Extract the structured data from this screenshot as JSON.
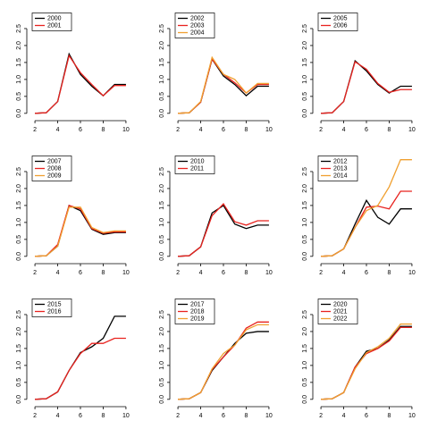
{
  "chart_data": [
    {
      "type": "line",
      "x": [
        2,
        3,
        4,
        5,
        6,
        7,
        8,
        9,
        10
      ],
      "xlim": [
        1.68,
        10.32
      ],
      "ylim": [
        -0.11,
        2.96
      ],
      "xticks": [
        2,
        4,
        6,
        8,
        10
      ],
      "yticks": [
        {
          "value": 0,
          "label": "0.0"
        },
        0.5,
        {
          "value": 1,
          "label": "1.0"
        },
        1.5,
        {
          "value": 2,
          "label": "2.0"
        },
        2.5
      ],
      "series": [
        {
          "name": "2000",
          "color": "#000000",
          "values": [
            0,
            0.02,
            0.35,
            1.75,
            1.15,
            0.8,
            0.52,
            0.85,
            0.85
          ]
        },
        {
          "name": "2001",
          "color": "#e8231f",
          "values": [
            0,
            0.02,
            0.35,
            1.7,
            1.2,
            0.85,
            0.52,
            0.82,
            0.82
          ]
        }
      ]
    },
    {
      "type": "line",
      "x": [
        2,
        3,
        4,
        5,
        6,
        7,
        8,
        9,
        10
      ],
      "xlim": [
        1.68,
        10.32
      ],
      "ylim": [
        -0.11,
        2.96
      ],
      "xticks": [
        2,
        4,
        6,
        8,
        10
      ],
      "yticks": [
        {
          "value": 0,
          "label": "0.0"
        },
        0.5,
        {
          "value": 1,
          "label": "1.0"
        },
        1.5,
        {
          "value": 2,
          "label": "2.0"
        },
        2.5
      ],
      "series": [
        {
          "name": "2002",
          "color": "#000000",
          "values": [
            0,
            0.02,
            0.33,
            1.6,
            1.1,
            0.85,
            0.52,
            0.8,
            0.8
          ]
        },
        {
          "name": "2003",
          "color": "#e8231f",
          "values": [
            0,
            0.02,
            0.33,
            1.6,
            1.15,
            0.9,
            0.6,
            0.85,
            0.85
          ]
        },
        {
          "name": "2004",
          "color": "#f0a030",
          "values": [
            0,
            0.02,
            0.35,
            1.65,
            1.15,
            1.0,
            0.6,
            0.88,
            0.88
          ]
        }
      ]
    },
    {
      "type": "line",
      "x": [
        2,
        3,
        4,
        5,
        6,
        7,
        8,
        9,
        10
      ],
      "xlim": [
        1.68,
        10.32
      ],
      "ylim": [
        -0.11,
        2.96
      ],
      "xticks": [
        2,
        4,
        6,
        8,
        10
      ],
      "yticks": [
        {
          "value": 0,
          "label": "0.0"
        },
        0.5,
        {
          "value": 1,
          "label": "1.0"
        },
        1.5,
        {
          "value": 2,
          "label": "2.0"
        },
        2.5
      ],
      "series": [
        {
          "name": "2005",
          "color": "#000000",
          "values": [
            0,
            0.02,
            0.35,
            1.55,
            1.25,
            0.85,
            0.6,
            0.8,
            0.8
          ]
        },
        {
          "name": "2006",
          "color": "#e8231f",
          "values": [
            0,
            0.02,
            0.35,
            1.52,
            1.3,
            0.88,
            0.62,
            0.7,
            0.7
          ]
        }
      ]
    },
    {
      "type": "line",
      "x": [
        2,
        3,
        4,
        5,
        6,
        7,
        8,
        9,
        10
      ],
      "xlim": [
        1.68,
        10.32
      ],
      "ylim": [
        -0.11,
        2.96
      ],
      "xticks": [
        2,
        4,
        6,
        8,
        10
      ],
      "yticks": [
        {
          "value": 0,
          "label": "0.0"
        },
        0.5,
        {
          "value": 1,
          "label": "1.0"
        },
        1.5,
        {
          "value": 2,
          "label": "2.0"
        },
        2.5
      ],
      "series": [
        {
          "name": "2007",
          "color": "#000000",
          "values": [
            0,
            0.02,
            0.3,
            1.5,
            1.35,
            0.8,
            0.65,
            0.7,
            0.7
          ]
        },
        {
          "name": "2008",
          "color": "#e8231f",
          "values": [
            0,
            0.02,
            0.35,
            1.5,
            1.4,
            0.82,
            0.68,
            0.72,
            0.72
          ]
        },
        {
          "name": "2009",
          "color": "#f0a030",
          "values": [
            0,
            0.02,
            0.3,
            1.45,
            1.45,
            0.85,
            0.7,
            0.75,
            0.75
          ]
        }
      ]
    },
    {
      "type": "line",
      "x": [
        2,
        3,
        4,
        5,
        6,
        7,
        8,
        9,
        10
      ],
      "xlim": [
        1.68,
        10.32
      ],
      "ylim": [
        -0.11,
        2.96
      ],
      "xticks": [
        2,
        4,
        6,
        8,
        10
      ],
      "yticks": [
        {
          "value": 0,
          "label": "0.0"
        },
        0.5,
        {
          "value": 1,
          "label": "1.0"
        },
        1.5,
        {
          "value": 2,
          "label": "2.0"
        },
        2.5
      ],
      "series": [
        {
          "name": "2010",
          "color": "#000000",
          "values": [
            0,
            0.02,
            0.28,
            1.28,
            1.5,
            0.95,
            0.82,
            0.92,
            0.92
          ]
        },
        {
          "name": "2011",
          "color": "#e8231f",
          "values": [
            0,
            0.02,
            0.28,
            1.2,
            1.55,
            1.02,
            0.92,
            1.05,
            1.05
          ]
        }
      ]
    },
    {
      "type": "line",
      "x": [
        2,
        3,
        4,
        5,
        6,
        7,
        8,
        9,
        10
      ],
      "xlim": [
        1.68,
        10.32
      ],
      "ylim": [
        -0.11,
        2.96
      ],
      "xticks": [
        2,
        4,
        6,
        8,
        10
      ],
      "yticks": [
        {
          "value": 0,
          "label": "0.0"
        },
        0.5,
        {
          "value": 1,
          "label": "1.0"
        },
        1.5,
        {
          "value": 2,
          "label": "2.0"
        },
        2.5
      ],
      "series": [
        {
          "name": "2012",
          "color": "#000000",
          "values": [
            0,
            0.02,
            0.22,
            0.95,
            1.65,
            1.15,
            0.95,
            1.4,
            1.4
          ]
        },
        {
          "name": "2013",
          "color": "#e8231f",
          "values": [
            0,
            0.02,
            0.22,
            0.85,
            1.45,
            1.48,
            1.4,
            1.92,
            1.92
          ]
        },
        {
          "name": "2014",
          "color": "#f0a030",
          "values": [
            0,
            0.02,
            0.22,
            0.85,
            1.35,
            1.5,
            2.05,
            2.85,
            2.85
          ]
        }
      ]
    },
    {
      "type": "line",
      "x": [
        2,
        3,
        4,
        5,
        6,
        7,
        8,
        9,
        10
      ],
      "xlim": [
        1.68,
        10.32
      ],
      "ylim": [
        -0.11,
        2.96
      ],
      "xticks": [
        2,
        4,
        6,
        8,
        10
      ],
      "yticks": [
        {
          "value": 0,
          "label": "0.0"
        },
        0.5,
        {
          "value": 1,
          "label": "1.0"
        },
        1.5,
        {
          "value": 2,
          "label": "2.0"
        },
        2.5
      ],
      "series": [
        {
          "name": "2015",
          "color": "#000000",
          "values": [
            0,
            0.02,
            0.22,
            0.85,
            1.38,
            1.55,
            1.8,
            2.45,
            2.45
          ]
        },
        {
          "name": "2016",
          "color": "#e8231f",
          "values": [
            0,
            0.02,
            0.22,
            0.85,
            1.35,
            1.65,
            1.65,
            1.8,
            1.8
          ]
        }
      ]
    },
    {
      "type": "line",
      "x": [
        2,
        3,
        4,
        5,
        6,
        7,
        8,
        9,
        10
      ],
      "xlim": [
        1.68,
        10.32
      ],
      "ylim": [
        -0.11,
        2.96
      ],
      "xticks": [
        2,
        4,
        6,
        8,
        10
      ],
      "yticks": [
        {
          "value": 0,
          "label": "0.0"
        },
        0.5,
        {
          "value": 1,
          "label": "1.0"
        },
        1.5,
        {
          "value": 2,
          "label": "2.0"
        },
        2.5
      ],
      "series": [
        {
          "name": "2017",
          "color": "#000000",
          "values": [
            0,
            0.02,
            0.2,
            0.85,
            1.25,
            1.65,
            1.95,
            2.0,
            2.0
          ]
        },
        {
          "name": "2018",
          "color": "#e8231f",
          "values": [
            0,
            0.02,
            0.2,
            0.88,
            1.25,
            1.6,
            2.1,
            2.28,
            2.28
          ]
        },
        {
          "name": "2019",
          "color": "#f0a030",
          "values": [
            0,
            0.02,
            0.2,
            0.9,
            1.35,
            1.6,
            2.05,
            2.2,
            2.2
          ]
        }
      ]
    },
    {
      "type": "line",
      "x": [
        2,
        3,
        4,
        5,
        6,
        7,
        8,
        9,
        10
      ],
      "xlim": [
        1.68,
        10.32
      ],
      "ylim": [
        -0.11,
        2.96
      ],
      "xticks": [
        2,
        4,
        6,
        8,
        10
      ],
      "yticks": [
        {
          "value": 0,
          "label": "0.0"
        },
        0.5,
        {
          "value": 1,
          "label": "1.0"
        },
        1.5,
        {
          "value": 2,
          "label": "2.0"
        },
        2.5
      ],
      "series": [
        {
          "name": "2020",
          "color": "#000000",
          "values": [
            0,
            0.02,
            0.2,
            0.95,
            1.42,
            1.5,
            1.75,
            2.15,
            2.15
          ]
        },
        {
          "name": "2021",
          "color": "#e8231f",
          "values": [
            0,
            0.02,
            0.2,
            0.95,
            1.35,
            1.5,
            1.72,
            2.12,
            2.12
          ]
        },
        {
          "name": "2022",
          "color": "#f0a030",
          "values": [
            0,
            0.02,
            0.2,
            0.9,
            1.38,
            1.55,
            1.8,
            2.22,
            2.22
          ]
        }
      ]
    }
  ]
}
